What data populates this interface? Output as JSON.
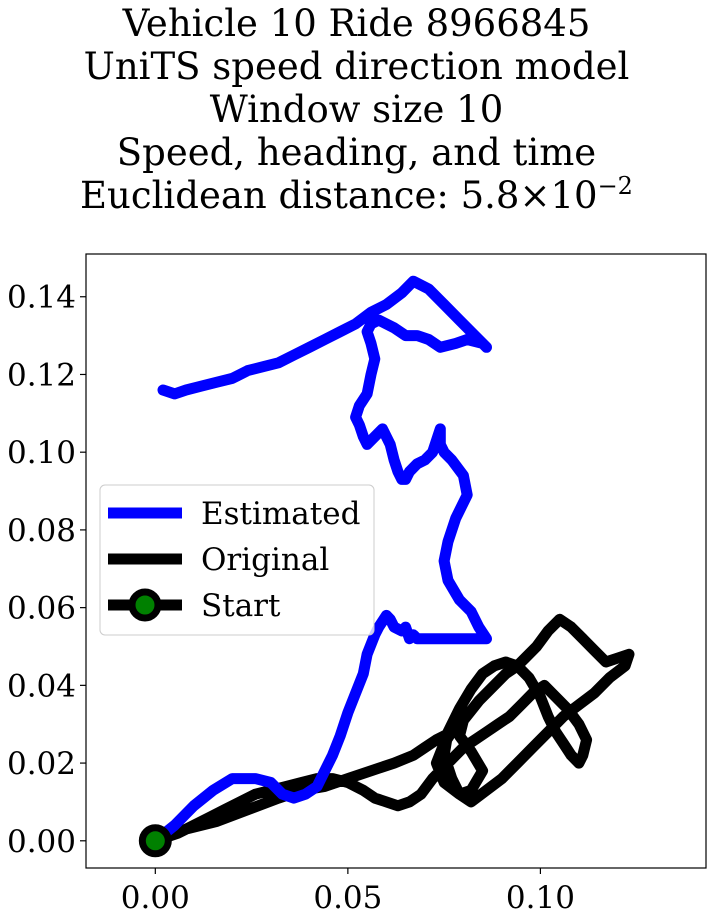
{
  "chart_data": {
    "type": "line",
    "title_lines": [
      "Vehicle 10 Ride 8966845",
      "UniTS speed direction model",
      "Window size 10",
      "Speed, heading, and time"
    ],
    "distance_label": "Euclidean distance: 5.8",
    "distance_times": "×",
    "distance_base": "10",
    "distance_exponent": "−2",
    "xlim": [
      -0.018,
      0.143
    ],
    "ylim": [
      -0.007,
      0.151
    ],
    "x_ticks": [
      0.0,
      0.05,
      0.1
    ],
    "x_tick_labels": [
      "0.00",
      "0.05",
      "0.10"
    ],
    "y_ticks": [
      0.0,
      0.02,
      0.04,
      0.06,
      0.08,
      0.1,
      0.12,
      0.14
    ],
    "y_tick_labels": [
      "0.00",
      "0.02",
      "0.04",
      "0.06",
      "0.08",
      "0.10",
      "0.12",
      "0.14"
    ],
    "grid": false,
    "legend_position": "center-left",
    "series": [
      {
        "name": "Estimated",
        "color": "#0000ff",
        "x": [
          0.0,
          0.005,
          0.01,
          0.015,
          0.02,
          0.026,
          0.03,
          0.033,
          0.036,
          0.039,
          0.042,
          0.044,
          0.046,
          0.048,
          0.05,
          0.052,
          0.054,
          0.055,
          0.057,
          0.058,
          0.06,
          0.061,
          0.062,
          0.064,
          0.065,
          0.066,
          0.067,
          0.068,
          0.069,
          0.07,
          0.071,
          0.073,
          0.075,
          0.077,
          0.078,
          0.08,
          0.082,
          0.083,
          0.085,
          0.086,
          0.084,
          0.082,
          0.079,
          0.076,
          0.075,
          0.076,
          0.078,
          0.081,
          0.08,
          0.077,
          0.075,
          0.074,
          0.074,
          0.072,
          0.07,
          0.068,
          0.066,
          0.065,
          0.064,
          0.063,
          0.062,
          0.061,
          0.059,
          0.057,
          0.055,
          0.054,
          0.053,
          0.052,
          0.053,
          0.055,
          0.056,
          0.057,
          0.056,
          0.055,
          0.056,
          0.058,
          0.06,
          0.062,
          0.065,
          0.068,
          0.071,
          0.074,
          0.078,
          0.081,
          0.085,
          0.086,
          0.083,
          0.079,
          0.075,
          0.071,
          0.067,
          0.064,
          0.06,
          0.056,
          0.052,
          0.048,
          0.044,
          0.04,
          0.036,
          0.032,
          0.028,
          0.024,
          0.02,
          0.016,
          0.012,
          0.008,
          0.005,
          0.002
        ],
        "y": [
          0.0,
          0.004,
          0.009,
          0.013,
          0.016,
          0.016,
          0.015,
          0.012,
          0.011,
          0.012,
          0.014,
          0.018,
          0.022,
          0.027,
          0.033,
          0.038,
          0.043,
          0.048,
          0.053,
          0.055,
          0.058,
          0.057,
          0.055,
          0.054,
          0.055,
          0.052,
          0.053,
          0.052,
          0.052,
          0.052,
          0.052,
          0.052,
          0.052,
          0.052,
          0.052,
          0.052,
          0.052,
          0.052,
          0.052,
          0.052,
          0.055,
          0.059,
          0.062,
          0.067,
          0.072,
          0.077,
          0.083,
          0.089,
          0.094,
          0.098,
          0.1,
          0.102,
          0.106,
          0.1,
          0.098,
          0.097,
          0.095,
          0.093,
          0.093,
          0.095,
          0.098,
          0.102,
          0.106,
          0.104,
          0.102,
          0.104,
          0.107,
          0.109,
          0.112,
          0.115,
          0.12,
          0.124,
          0.128,
          0.131,
          0.133,
          0.134,
          0.133,
          0.132,
          0.13,
          0.13,
          0.129,
          0.127,
          0.128,
          0.129,
          0.128,
          0.127,
          0.13,
          0.134,
          0.138,
          0.142,
          0.144,
          0.141,
          0.138,
          0.136,
          0.133,
          0.131,
          0.129,
          0.127,
          0.125,
          0.123,
          0.122,
          0.121,
          0.119,
          0.118,
          0.117,
          0.116,
          0.115,
          0.116
        ]
      },
      {
        "name": "Original",
        "color": "#000000",
        "x": [
          0.0,
          0.008,
          0.016,
          0.024,
          0.032,
          0.038,
          0.044,
          0.05,
          0.056,
          0.062,
          0.067,
          0.07,
          0.073,
          0.075,
          0.077,
          0.075,
          0.073,
          0.075,
          0.079,
          0.082,
          0.085,
          0.082,
          0.079,
          0.08,
          0.084,
          0.088,
          0.091,
          0.094,
          0.096,
          0.099,
          0.102,
          0.105,
          0.108,
          0.111,
          0.114,
          0.117,
          0.12,
          0.123,
          0.122,
          0.118,
          0.114,
          0.11,
          0.106,
          0.102,
          0.098,
          0.094,
          0.09,
          0.086,
          0.082,
          0.079,
          0.077,
          0.075,
          0.076,
          0.079,
          0.082,
          0.085,
          0.088,
          0.091,
          0.094,
          0.097,
          0.1,
          0.102,
          0.104,
          0.106,
          0.108,
          0.11,
          0.111,
          0.112,
          0.11,
          0.107,
          0.104,
          0.101,
          0.098,
          0.095,
          0.092,
          0.089,
          0.086,
          0.083,
          0.08,
          0.078,
          0.076,
          0.074,
          0.072,
          0.069,
          0.066,
          0.063,
          0.06,
          0.057,
          0.054,
          0.05,
          0.046,
          0.042,
          0.038,
          0.034,
          0.03,
          0.026,
          0.022,
          0.018,
          0.014,
          0.01,
          0.006,
          0.003
        ],
        "y": [
          0.0,
          0.003,
          0.005,
          0.008,
          0.011,
          0.013,
          0.014,
          0.016,
          0.018,
          0.02,
          0.022,
          0.024,
          0.026,
          0.027,
          0.028,
          0.025,
          0.02,
          0.015,
          0.012,
          0.013,
          0.018,
          0.023,
          0.027,
          0.031,
          0.036,
          0.04,
          0.043,
          0.045,
          0.047,
          0.05,
          0.054,
          0.057,
          0.055,
          0.052,
          0.049,
          0.046,
          0.047,
          0.048,
          0.045,
          0.042,
          0.038,
          0.035,
          0.032,
          0.028,
          0.024,
          0.02,
          0.016,
          0.013,
          0.01,
          0.012,
          0.016,
          0.022,
          0.028,
          0.034,
          0.039,
          0.043,
          0.045,
          0.046,
          0.045,
          0.042,
          0.037,
          0.032,
          0.028,
          0.025,
          0.022,
          0.02,
          0.022,
          0.026,
          0.03,
          0.034,
          0.037,
          0.04,
          0.038,
          0.035,
          0.032,
          0.03,
          0.028,
          0.026,
          0.024,
          0.022,
          0.02,
          0.018,
          0.016,
          0.012,
          0.01,
          0.009,
          0.01,
          0.011,
          0.013,
          0.015,
          0.016,
          0.016,
          0.015,
          0.014,
          0.013,
          0.012,
          0.01,
          0.008,
          0.006,
          0.004,
          0.002,
          0.001
        ]
      },
      {
        "name": "Start",
        "marker_fill": "#008000",
        "marker_edge": "#000000",
        "x": [
          0.0
        ],
        "y": [
          0.0
        ]
      }
    ]
  }
}
